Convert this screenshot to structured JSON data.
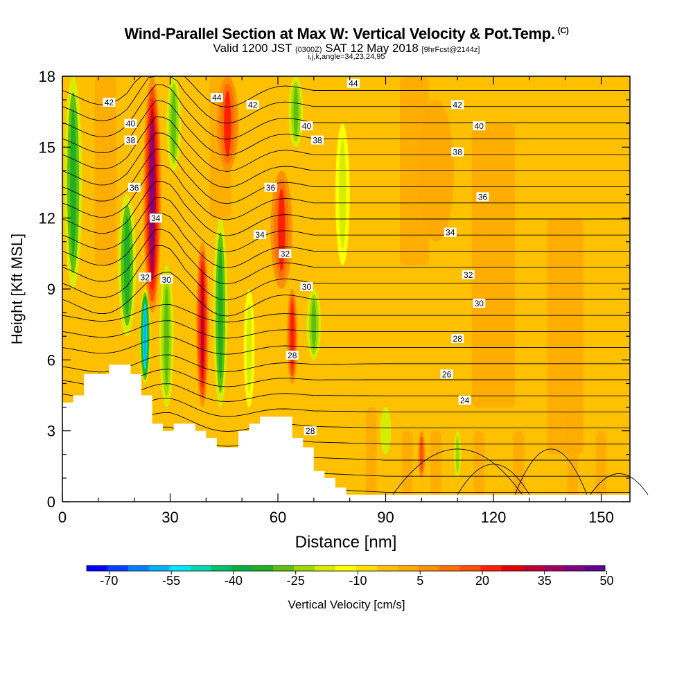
{
  "title": "Wind-Parallel Section at Max W: Vertical Velocity & Pot.Temp.",
  "title_mark": "(C)",
  "subtitle_valid_pre": "Valid 1200 JST",
  "subtitle_utc": "(0300Z)",
  "subtitle_date": "SAT 12 May 2018",
  "subtitle_fcst": "[9hrFcst@2144z]",
  "subtitle_line3": "i,j,k,angle=34,23,24,95",
  "chart_data": {
    "type": "heatmap",
    "xlabel": "Distance [nm]",
    "ylabel": "Height [Kft MSL]",
    "xlim": [
      0,
      158
    ],
    "ylim": [
      0,
      18
    ],
    "x_ticks": [
      0,
      30,
      60,
      90,
      120,
      150
    ],
    "y_ticks": [
      0,
      3,
      6,
      9,
      12,
      15,
      18
    ],
    "colorbar": {
      "label": "Vertical Velocity [cm/s]",
      "tick_labels": [
        "-70",
        "-55",
        "-40",
        "-25",
        "-10",
        "5",
        "20",
        "35",
        "50"
      ],
      "tick_values": [
        -70,
        -55,
        -40,
        -25,
        -10,
        5,
        20,
        35,
        50
      ],
      "colors": [
        "#0000ff",
        "#0040ff",
        "#0080ff",
        "#00b0ff",
        "#00e6ff",
        "#00d8b0",
        "#00c070",
        "#00b040",
        "#20b020",
        "#60c010",
        "#a0d800",
        "#d8ec00",
        "#ffff00",
        "#ffe000",
        "#ffc000",
        "#ffaa00",
        "#ff9000",
        "#ff7000",
        "#ff5000",
        "#ff2000",
        "#e80000",
        "#c00030",
        "#a00060",
        "#800080",
        "#600090"
      ]
    },
    "velocity_features": [
      {
        "x": 3,
        "ybot": 9,
        "ytop": 18,
        "w": -30,
        "width": 5
      },
      {
        "x": 18,
        "ybot": 7,
        "ytop": 13,
        "w": -30,
        "width": 5
      },
      {
        "x": 23,
        "ybot": 5,
        "ytop": 9,
        "w": -55,
        "width": 3
      },
      {
        "x": 25,
        "ybot": 8,
        "ytop": 18,
        "w": 45,
        "width": 5
      },
      {
        "x": 29,
        "ybot": 4,
        "ytop": 10,
        "w": -25,
        "width": 4
      },
      {
        "x": 31,
        "ybot": 14,
        "ytop": 18,
        "w": -25,
        "width": 4
      },
      {
        "x": 39,
        "ybot": 4,
        "ytop": 11,
        "w": 35,
        "width": 3.5
      },
      {
        "x": 44,
        "ybot": 4,
        "ytop": 12,
        "w": -30,
        "width": 4
      },
      {
        "x": 46,
        "ybot": 14,
        "ytop": 18,
        "w": 25,
        "width": 6
      },
      {
        "x": 52,
        "ybot": 4,
        "ytop": 9,
        "w": -15,
        "width": 3
      },
      {
        "x": 61,
        "ybot": 9,
        "ytop": 14,
        "w": 25,
        "width": 6
      },
      {
        "x": 64,
        "ybot": 5,
        "ytop": 9,
        "w": 28,
        "width": 3
      },
      {
        "x": 65,
        "ybot": 15,
        "ytop": 18,
        "w": -25,
        "width": 4
      },
      {
        "x": 70,
        "ybot": 6,
        "ytop": 9,
        "w": -25,
        "width": 4
      },
      {
        "x": 78,
        "ybot": 10,
        "ytop": 16,
        "w": -15,
        "width": 4
      },
      {
        "x": 90,
        "ybot": 2,
        "ytop": 4,
        "w": -12,
        "width": 3
      },
      {
        "x": 100,
        "ybot": 1,
        "ytop": 3,
        "w": 20,
        "width": 2
      },
      {
        "x": 110,
        "ybot": 1,
        "ytop": 3,
        "w": -20,
        "width": 2
      },
      {
        "x": 104,
        "ybot": 11,
        "ytop": 17,
        "w": 8,
        "width": 10
      }
    ],
    "terrain_nm_kft": [
      [
        0,
        4.2
      ],
      [
        3,
        4.2
      ],
      [
        3,
        4.5
      ],
      [
        6,
        4.5
      ],
      [
        6,
        5.4
      ],
      [
        13,
        5.4
      ],
      [
        13,
        5.8
      ],
      [
        19,
        5.8
      ],
      [
        19,
        5.4
      ],
      [
        22,
        5.4
      ],
      [
        22,
        4.5
      ],
      [
        25,
        4.5
      ],
      [
        25,
        3.3
      ],
      [
        28,
        3.3
      ],
      [
        28,
        3.0
      ],
      [
        31,
        3.0
      ],
      [
        31,
        3.3
      ],
      [
        37,
        3.3
      ],
      [
        37,
        3.0
      ],
      [
        40,
        3.0
      ],
      [
        40,
        2.7
      ],
      [
        43,
        2.7
      ],
      [
        43,
        2.3
      ],
      [
        49,
        2.3
      ],
      [
        49,
        3.0
      ],
      [
        52,
        3.0
      ],
      [
        52,
        3.3
      ],
      [
        55,
        3.3
      ],
      [
        55,
        3.6
      ],
      [
        64,
        3.6
      ],
      [
        64,
        2.7
      ],
      [
        67,
        2.7
      ],
      [
        67,
        2.3
      ],
      [
        70,
        2.3
      ],
      [
        70,
        1.3
      ],
      [
        73,
        1.3
      ],
      [
        73,
        1.0
      ],
      [
        76,
        1.0
      ],
      [
        76,
        0.6
      ],
      [
        79,
        0.6
      ],
      [
        79,
        0.3
      ],
      [
        82,
        0.3
      ],
      [
        82,
        0.0
      ]
    ],
    "isentrope_labels": [
      {
        "text": "44",
        "x": 43,
        "y": 17.1
      },
      {
        "text": "44",
        "x": 81,
        "y": 17.7
      },
      {
        "text": "42",
        "x": 13,
        "y": 16.9
      },
      {
        "text": "42",
        "x": 53,
        "y": 16.8
      },
      {
        "text": "42",
        "x": 110,
        "y": 16.8
      },
      {
        "text": "40",
        "x": 19,
        "y": 16.0
      },
      {
        "text": "40",
        "x": 68,
        "y": 15.9
      },
      {
        "text": "40",
        "x": 116,
        "y": 15.9
      },
      {
        "text": "38",
        "x": 19,
        "y": 15.3
      },
      {
        "text": "38",
        "x": 71,
        "y": 15.3
      },
      {
        "text": "38",
        "x": 110,
        "y": 14.8
      },
      {
        "text": "36",
        "x": 20,
        "y": 13.3
      },
      {
        "text": "36",
        "x": 58,
        "y": 13.3
      },
      {
        "text": "36",
        "x": 117,
        "y": 12.9
      },
      {
        "text": "34",
        "x": 26,
        "y": 12.0
      },
      {
        "text": "34",
        "x": 55,
        "y": 11.3
      },
      {
        "text": "34",
        "x": 108,
        "y": 11.4
      },
      {
        "text": "32",
        "x": 23,
        "y": 9.5
      },
      {
        "text": "32",
        "x": 62,
        "y": 10.5
      },
      {
        "text": "32",
        "x": 113,
        "y": 9.6
      },
      {
        "text": "30",
        "x": 29,
        "y": 9.4
      },
      {
        "text": "30",
        "x": 68,
        "y": 9.1
      },
      {
        "text": "30",
        "x": 116,
        "y": 8.4
      },
      {
        "text": "28",
        "x": 110,
        "y": 6.9
      },
      {
        "text": "28",
        "x": 64,
        "y": 6.2
      },
      {
        "text": "28",
        "x": 69,
        "y": 3.0
      },
      {
        "text": "26",
        "x": 107,
        "y": 5.4
      },
      {
        "text": "24",
        "x": 112,
        "y": 4.3
      }
    ]
  }
}
